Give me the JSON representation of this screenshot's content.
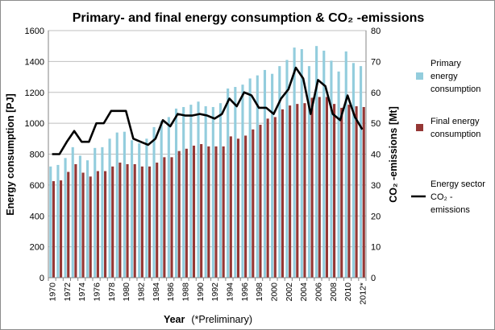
{
  "chart_data": {
    "type": "bar",
    "title": "Primary- and final energy consumption & CO₂ -emissions",
    "xlabel": "Year",
    "xlabel_note": "(*Preliminary)",
    "ylabel_left": "Energy consumption [PJ]",
    "ylabel_right": "CO₂ -emissions [Mt]",
    "ylim_left": [
      0,
      1600
    ],
    "ylim_right": [
      0,
      80
    ],
    "yticks_left": [
      0,
      200,
      400,
      600,
      800,
      1000,
      1200,
      1400,
      1600
    ],
    "yticks_right": [
      0,
      10,
      20,
      30,
      40,
      50,
      60,
      70,
      80
    ],
    "grid": true,
    "legend_position": "right",
    "categories": [
      "1970",
      "1971",
      "1972",
      "1973",
      "1974",
      "1975",
      "1976",
      "1977",
      "1978",
      "1979",
      "1980",
      "1981",
      "1982",
      "1983",
      "1984",
      "1985",
      "1986",
      "1987",
      "1988",
      "1989",
      "1990",
      "1991",
      "1992",
      "1993",
      "1994",
      "1995",
      "1996",
      "1997",
      "1998",
      "1999",
      "2000",
      "2001",
      "2002",
      "2003",
      "2004",
      "2005",
      "2006",
      "2007",
      "2008",
      "2009",
      "2010",
      "2011",
      "2012*"
    ],
    "xtick_labels": [
      "1970",
      "1972",
      "1974",
      "1976",
      "1978",
      "1980",
      "1982",
      "1984",
      "1986",
      "1988",
      "1990",
      "1992",
      "1994",
      "1996",
      "1998",
      "2000",
      "2002",
      "2004",
      "2006",
      "2008",
      "2010",
      "2012*"
    ],
    "series": [
      {
        "name": "Primary energy consumption",
        "type": "bar",
        "axis": "left",
        "color": "#93cddd",
        "values": [
          720,
          730,
          775,
          845,
          790,
          760,
          840,
          845,
          900,
          940,
          945,
          890,
          870,
          900,
          975,
          1015,
          1040,
          1095,
          1105,
          1120,
          1140,
          1110,
          1105,
          1130,
          1225,
          1235,
          1250,
          1290,
          1310,
          1345,
          1320,
          1370,
          1410,
          1490,
          1480,
          1370,
          1500,
          1470,
          1405,
          1335,
          1465,
          1390,
          1370
        ]
      },
      {
        "name": "Final energy consumption",
        "type": "bar",
        "axis": "left",
        "color": "#953735",
        "values": [
          625,
          630,
          685,
          735,
          680,
          655,
          690,
          690,
          720,
          745,
          735,
          735,
          720,
          720,
          745,
          780,
          780,
          820,
          835,
          855,
          865,
          850,
          850,
          850,
          915,
          900,
          920,
          960,
          990,
          1030,
          1040,
          1090,
          1115,
          1125,
          1130,
          1165,
          1170,
          1170,
          1125,
          1100,
          1120,
          1110,
          1105
        ]
      },
      {
        "name": "Energy sector CO₂ -emissions",
        "type": "line",
        "axis": "right",
        "color": "#000000",
        "values": [
          40,
          40,
          44,
          47.5,
          44,
          44,
          50,
          50,
          54,
          54,
          54,
          45,
          44,
          43,
          45,
          51,
          49,
          53,
          52.5,
          52.5,
          53,
          52.5,
          51.5,
          53,
          58,
          55.5,
          60,
          59,
          55,
          55,
          53,
          58,
          61,
          68,
          64.5,
          53,
          64,
          62,
          53,
          51,
          59,
          52,
          48
        ]
      }
    ],
    "legend": [
      {
        "lines": [
          "Primary",
          "energy",
          "consumption"
        ],
        "swatch": "bar",
        "color": "#93cddd"
      },
      {
        "lines": [
          "Final energy",
          "consumption"
        ],
        "swatch": "bar",
        "color": "#953735"
      },
      {
        "lines": [
          "Energy sector",
          "CO₂ -",
          "emissions"
        ],
        "swatch": "line",
        "color": "#000000"
      }
    ]
  }
}
